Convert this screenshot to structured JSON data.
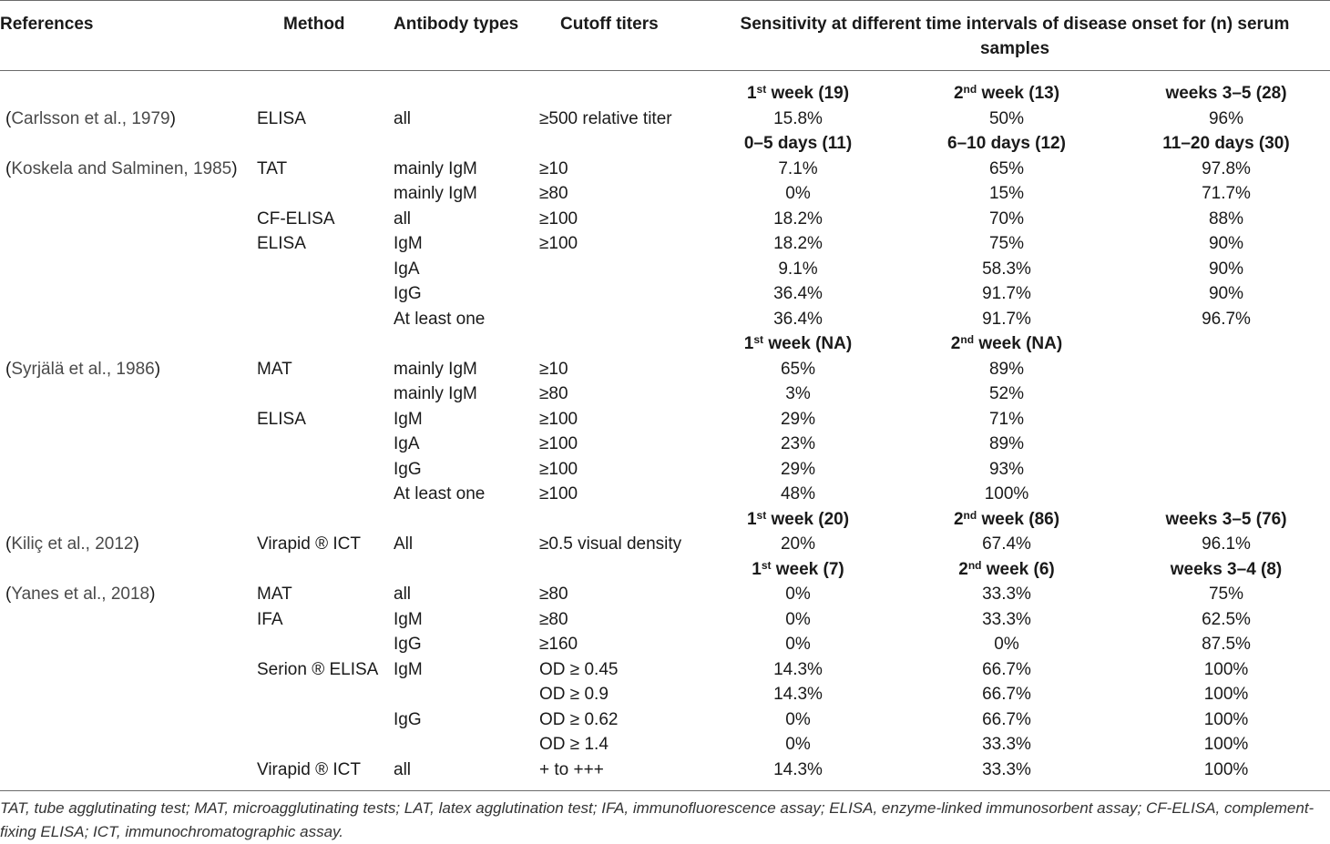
{
  "header": {
    "references": "References",
    "method": "Method",
    "antibody_types": "Antibody types",
    "cutoff_titers": "Cutoff titers",
    "sensitivity": "Sensitivity at different time intervals of disease onset for (n) serum samples"
  },
  "groups": [
    {
      "cols": [
        {
          "base": "1",
          "sup": "st",
          "rest": " week (19)"
        },
        {
          "base": "2",
          "sup": "nd",
          "rest": " week (13)"
        },
        {
          "base": "weeks 3–5 (28)",
          "sup": "",
          "rest": ""
        }
      ],
      "rows": [
        {
          "ref": "Carlsson et al., 1979",
          "method": "ELISA",
          "antibody": "all",
          "cutoff": "≥500 relative titer",
          "values": [
            "15.8%",
            "50%",
            "96%"
          ]
        }
      ]
    },
    {
      "cols": [
        {
          "base": "0–5 days (11)",
          "sup": "",
          "rest": ""
        },
        {
          "base": "6–10 days (12)",
          "sup": "",
          "rest": ""
        },
        {
          "base": "11–20 days (30)",
          "sup": "",
          "rest": ""
        }
      ],
      "rows": [
        {
          "ref": "Koskela and Salminen, 1985",
          "method": "TAT",
          "antibody": "mainly IgM",
          "cutoff": "≥10",
          "values": [
            "7.1%",
            "65%",
            "97.8%"
          ]
        },
        {
          "ref": "",
          "method": "",
          "antibody": "mainly IgM",
          "cutoff": "≥80",
          "values": [
            "0%",
            "15%",
            "71.7%"
          ]
        },
        {
          "ref": "",
          "method": "CF-ELISA",
          "antibody": "all",
          "cutoff": "≥100",
          "values": [
            "18.2%",
            "70%",
            "88%"
          ]
        },
        {
          "ref": "",
          "method": "ELISA",
          "antibody": "IgM",
          "cutoff": "≥100",
          "values": [
            "18.2%",
            "75%",
            "90%"
          ]
        },
        {
          "ref": "",
          "method": "",
          "antibody": "IgA",
          "cutoff": "",
          "values": [
            "9.1%",
            "58.3%",
            "90%"
          ]
        },
        {
          "ref": "",
          "method": "",
          "antibody": "IgG",
          "cutoff": "",
          "values": [
            "36.4%",
            "91.7%",
            "90%"
          ]
        },
        {
          "ref": "",
          "method": "",
          "antibody": "At least one",
          "cutoff": "",
          "values": [
            "36.4%",
            "91.7%",
            "96.7%"
          ]
        }
      ]
    },
    {
      "cols": [
        {
          "base": "1",
          "sup": "st",
          "rest": " week (NA)"
        },
        {
          "base": "2",
          "sup": "nd",
          "rest": " week (NA)"
        },
        {
          "base": "",
          "sup": "",
          "rest": ""
        }
      ],
      "rows": [
        {
          "ref": "Syrjälä et al., 1986",
          "method": "MAT",
          "antibody": "mainly IgM",
          "cutoff": "≥10",
          "values": [
            "65%",
            "89%",
            ""
          ]
        },
        {
          "ref": "",
          "method": "",
          "antibody": "mainly IgM",
          "cutoff": "≥80",
          "values": [
            "3%",
            "52%",
            ""
          ]
        },
        {
          "ref": "",
          "method": "ELISA",
          "antibody": "IgM",
          "cutoff": "≥100",
          "values": [
            "29%",
            "71%",
            ""
          ]
        },
        {
          "ref": "",
          "method": "",
          "antibody": "IgA",
          "cutoff": "≥100",
          "values": [
            "23%",
            "89%",
            ""
          ]
        },
        {
          "ref": "",
          "method": "",
          "antibody": "IgG",
          "cutoff": "≥100",
          "values": [
            "29%",
            "93%",
            ""
          ]
        },
        {
          "ref": "",
          "method": "",
          "antibody": "At least one",
          "cutoff": "≥100",
          "values": [
            "48%",
            "100%",
            ""
          ]
        }
      ]
    },
    {
      "cols": [
        {
          "base": "1",
          "sup": "st",
          "rest": " week (20)"
        },
        {
          "base": "2",
          "sup": "nd",
          "rest": " week (86)"
        },
        {
          "base": "weeks 3–5 (76)",
          "sup": "",
          "rest": ""
        }
      ],
      "rows": [
        {
          "ref": "Kiliç et al., 2012",
          "method": "Virapid ® ICT",
          "antibody": "All",
          "cutoff": "≥0.5 visual density",
          "values": [
            "20%",
            "67.4%",
            "96.1%"
          ]
        }
      ]
    },
    {
      "cols": [
        {
          "base": "1",
          "sup": "st",
          "rest": " week (7)"
        },
        {
          "base": "2",
          "sup": "nd",
          "rest": " week (6)"
        },
        {
          "base": "weeks 3–4 (8)",
          "sup": "",
          "rest": ""
        }
      ],
      "rows": [
        {
          "ref": "Yanes et al., 2018",
          "method": "MAT",
          "antibody": "all",
          "cutoff": "≥80",
          "values": [
            "0%",
            "33.3%",
            "75%"
          ]
        },
        {
          "ref": "",
          "method": "IFA",
          "antibody": "IgM",
          "cutoff": "≥80",
          "values": [
            "0%",
            "33.3%",
            "62.5%"
          ]
        },
        {
          "ref": "",
          "method": "",
          "antibody": "IgG",
          "cutoff": "≥160",
          "values": [
            "0%",
            "0%",
            "87.5%"
          ]
        },
        {
          "ref": "",
          "method": "Serion ® ELISA",
          "antibody": "IgM",
          "cutoff": "OD ≥ 0.45",
          "values": [
            "14.3%",
            "66.7%",
            "100%"
          ]
        },
        {
          "ref": "",
          "method": "",
          "antibody": "",
          "cutoff": "OD ≥ 0.9",
          "values": [
            "14.3%",
            "66.7%",
            "100%"
          ]
        },
        {
          "ref": "",
          "method": "",
          "antibody": "IgG",
          "cutoff": "OD ≥ 0.62",
          "values": [
            "0%",
            "66.7%",
            "100%"
          ]
        },
        {
          "ref": "",
          "method": "",
          "antibody": "",
          "cutoff": "OD ≥ 1.4",
          "values": [
            "0%",
            "33.3%",
            "100%"
          ]
        },
        {
          "ref": "",
          "method": "Virapid ® ICT",
          "antibody": "all",
          "cutoff": "+ to +++",
          "values": [
            "14.3%",
            "33.3%",
            "100%"
          ]
        }
      ]
    }
  ],
  "footnote": "TAT, tube agglutinating test; MAT, microagglutinating tests; LAT, latex agglutination test; IFA, immunofluorescence assay; ELISA, enzyme-linked immunosorbent assay; CF-ELISA, complement-fixing ELISA; ICT, immunochromatographic assay."
}
